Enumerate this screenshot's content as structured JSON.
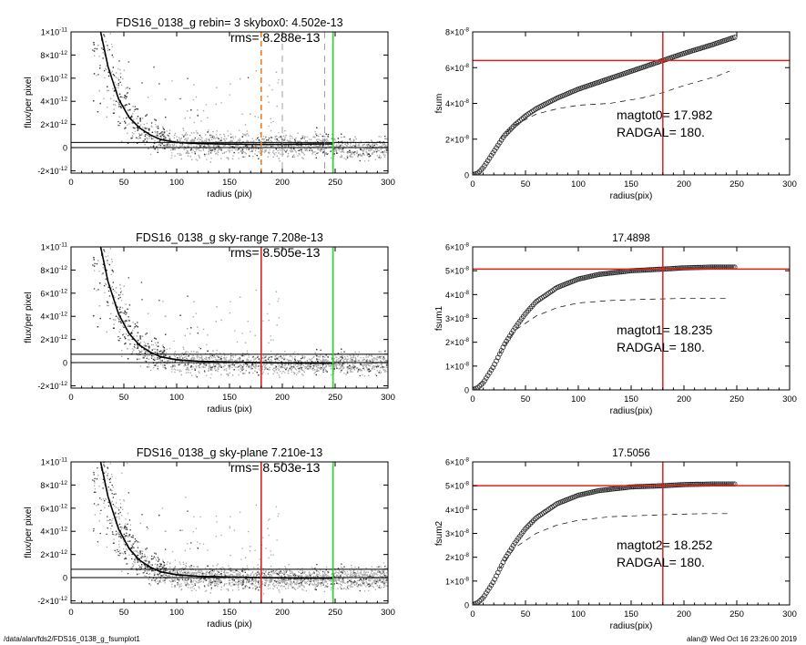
{
  "footer": {
    "left": "/data/alan/fds2/FDS16_0138_g_fsumplot1",
    "right": "alan@  Wed Oct 16 23:26:00 2019"
  },
  "colors": {
    "red": "#e0201f",
    "green": "#22dd22",
    "orange": "#ee8022",
    "scatter_dark": "#333333",
    "scatter_light": "#a8a8a8"
  },
  "chart_data": [
    {
      "id": "profile_rebin",
      "type": "scatter",
      "title": "FDS16_0138_g rebin= 3    skybox0:  4.502e-13",
      "annotation": "rms= 8.288e-13",
      "xlabel": "radius (pix)",
      "ylabel": "flux/per pixel",
      "xlim": [
        0,
        300
      ],
      "ylim": [
        -2.2e-12,
        1e-11
      ],
      "xticks": [
        "0",
        "50",
        "100",
        "150",
        "200",
        "250",
        "300"
      ],
      "yticks": [
        {
          "value": 1e-11,
          "mant": "1×10",
          "exp": "-11"
        },
        {
          "value": 8e-12,
          "mant": "8×10",
          "exp": "-12"
        },
        {
          "value": 6e-12,
          "mant": "6×10",
          "exp": "-12"
        },
        {
          "value": 4e-12,
          "mant": "4×10",
          "exp": "-12"
        },
        {
          "value": 2e-12,
          "mant": "2×10",
          "exp": "-12"
        },
        {
          "value": 0,
          "mant": "0",
          "exp": ""
        },
        {
          "value": -2e-12,
          "mant": "-2×10",
          "exp": "-12"
        }
      ],
      "sky_level": 4.502e-13,
      "profile": [
        [
          28,
          1e-11
        ],
        [
          35,
          7e-12
        ],
        [
          45,
          4.2e-12
        ],
        [
          55,
          2.6e-12
        ],
        [
          65,
          1.7e-12
        ],
        [
          75,
          1.1e-12
        ],
        [
          85,
          7e-13
        ],
        [
          100,
          4.5e-13
        ],
        [
          120,
          3.5e-13
        ],
        [
          150,
          3e-13
        ],
        [
          180,
          2.8e-13
        ],
        [
          210,
          2.9e-13
        ],
        [
          230,
          3.1e-13
        ],
        [
          248,
          3.2e-13
        ]
      ],
      "vlines": [
        {
          "x": 180,
          "color": "orange",
          "style": "dashed"
        },
        {
          "x": 200,
          "color": "gray",
          "style": "dashed"
        },
        {
          "x": 240,
          "color": "gray",
          "style": "dashed"
        },
        {
          "x": 248,
          "color": "green",
          "style": "solid"
        }
      ],
      "hlines": [
        {
          "y": 0,
          "color": "black"
        },
        {
          "y": 4.502e-13,
          "color": "black"
        }
      ]
    },
    {
      "id": "fsum",
      "type": "line",
      "title": "",
      "xlabel": "radius(pix)",
      "ylabel": "fsum",
      "xlim": [
        0,
        300
      ],
      "ylim": [
        0,
        8e-08
      ],
      "xticks": [
        "0",
        "50",
        "100",
        "150",
        "200",
        "250",
        "300"
      ],
      "yticks": [
        {
          "value": 8e-08,
          "mant": "8×10",
          "exp": "-8"
        },
        {
          "value": 6e-08,
          "mant": "6×10",
          "exp": "-8"
        },
        {
          "value": 4e-08,
          "mant": "4×10",
          "exp": "-8"
        },
        {
          "value": 2e-08,
          "mant": "2×10",
          "exp": "-8"
        },
        {
          "value": 0,
          "mant": "0",
          "exp": ""
        }
      ],
      "annotations": [
        "magtot0=  17.982",
        "RADGAL=    180."
      ],
      "curve": [
        [
          0,
          0
        ],
        [
          5,
          1e-09
        ],
        [
          10,
          4e-09
        ],
        [
          20,
          1.3e-08
        ],
        [
          30,
          2.2e-08
        ],
        [
          40,
          2.8e-08
        ],
        [
          50,
          3.3e-08
        ],
        [
          60,
          3.7e-08
        ],
        [
          80,
          4.3e-08
        ],
        [
          100,
          4.8e-08
        ],
        [
          120,
          5.2e-08
        ],
        [
          150,
          5.8e-08
        ],
        [
          180,
          6.4e-08
        ],
        [
          200,
          6.8e-08
        ],
        [
          225,
          7.25e-08
        ],
        [
          248,
          7.7e-08
        ]
      ],
      "dashed": [
        [
          25,
          2e-08
        ],
        [
          40,
          2.8e-08
        ],
        [
          60,
          3.4e-08
        ],
        [
          80,
          3.7e-08
        ],
        [
          100,
          3.9e-08
        ],
        [
          130,
          4e-08
        ],
        [
          160,
          4.3e-08
        ],
        [
          180,
          4.6e-08
        ],
        [
          200,
          5e-08
        ],
        [
          230,
          5.5e-08
        ],
        [
          243,
          5.8e-08
        ]
      ],
      "vline": 180,
      "hline": 6.4e-08
    },
    {
      "id": "profile_skyrange",
      "type": "scatter",
      "title": "FDS16_0138_g sky-range  7.208e-13",
      "annotation": "rms= 8.505e-13",
      "xlabel": "radius (pix)",
      "ylabel": "flux/per pixel",
      "xlim": [
        0,
        300
      ],
      "ylim": [
        -2.2e-12,
        1e-11
      ],
      "xticks": [
        "0",
        "50",
        "100",
        "150",
        "200",
        "250",
        "300"
      ],
      "yticks": [
        {
          "value": 1e-11,
          "mant": "1×10",
          "exp": "-11"
        },
        {
          "value": 8e-12,
          "mant": "8×10",
          "exp": "-12"
        },
        {
          "value": 6e-12,
          "mant": "6×10",
          "exp": "-12"
        },
        {
          "value": 4e-12,
          "mant": "4×10",
          "exp": "-12"
        },
        {
          "value": 2e-12,
          "mant": "2×10",
          "exp": "-12"
        },
        {
          "value": 0,
          "mant": "0",
          "exp": ""
        },
        {
          "value": -2e-12,
          "mant": "-2×10",
          "exp": "-12"
        }
      ],
      "sky_level": 7.208e-13,
      "profile": [
        [
          28,
          1e-11
        ],
        [
          35,
          7e-12
        ],
        [
          45,
          4.2e-12
        ],
        [
          55,
          2.5e-12
        ],
        [
          65,
          1.5e-12
        ],
        [
          75,
          9e-13
        ],
        [
          85,
          5e-13
        ],
        [
          100,
          2.5e-13
        ],
        [
          120,
          1.2e-13
        ],
        [
          150,
          5e-14
        ],
        [
          180,
          0
        ],
        [
          210,
          -3e-14
        ],
        [
          230,
          -4e-14
        ],
        [
          248,
          -5e-14
        ]
      ],
      "vlines": [
        {
          "x": 180,
          "color": "red",
          "style": "solid"
        },
        {
          "x": 248,
          "color": "green",
          "style": "solid"
        }
      ],
      "hlines": [
        {
          "y": 0,
          "color": "black"
        },
        {
          "y": 7.208e-13,
          "color": "black"
        }
      ]
    },
    {
      "id": "fsum1",
      "type": "line",
      "title": "17.4898",
      "xlabel": "radius(pix)",
      "ylabel": "fsum1",
      "xlim": [
        0,
        300
      ],
      "ylim": [
        0,
        6e-08
      ],
      "xticks": [
        "0",
        "50",
        "100",
        "150",
        "200",
        "250",
        "300"
      ],
      "yticks": [
        {
          "value": 6e-08,
          "mant": "6×10",
          "exp": "-8"
        },
        {
          "value": 5e-08,
          "mant": "5×10",
          "exp": "-8"
        },
        {
          "value": 4e-08,
          "mant": "4×10",
          "exp": "-8"
        },
        {
          "value": 3e-08,
          "mant": "3×10",
          "exp": "-8"
        },
        {
          "value": 2e-08,
          "mant": "2×10",
          "exp": "-8"
        },
        {
          "value": 1e-08,
          "mant": "1×10",
          "exp": "-8"
        },
        {
          "value": 0,
          "mant": "0",
          "exp": ""
        }
      ],
      "annotations": [
        "magtot1=  18.235",
        "RADGAL=    180."
      ],
      "curve": [
        [
          0,
          0
        ],
        [
          5,
          1e-09
        ],
        [
          10,
          3e-09
        ],
        [
          20,
          1e-08
        ],
        [
          30,
          1.9e-08
        ],
        [
          40,
          2.6e-08
        ],
        [
          50,
          3.2e-08
        ],
        [
          60,
          3.7e-08
        ],
        [
          80,
          4.3e-08
        ],
        [
          100,
          4.65e-08
        ],
        [
          120,
          4.85e-08
        ],
        [
          150,
          5e-08
        ],
        [
          180,
          5.07e-08
        ],
        [
          200,
          5.12e-08
        ],
        [
          225,
          5.15e-08
        ],
        [
          248,
          5.15e-08
        ]
      ],
      "dashed": [
        [
          25,
          1.5e-08
        ],
        [
          40,
          2.5e-08
        ],
        [
          60,
          3.1e-08
        ],
        [
          80,
          3.45e-08
        ],
        [
          100,
          3.65e-08
        ],
        [
          130,
          3.75e-08
        ],
        [
          160,
          3.8e-08
        ],
        [
          190,
          3.83e-08
        ],
        [
          220,
          3.85e-08
        ],
        [
          243,
          3.85e-08
        ]
      ],
      "vline": 180,
      "hline": 5.07e-08
    },
    {
      "id": "profile_skyplane",
      "type": "scatter",
      "title": "FDS16_0138_g sky-plane  7.210e-13",
      "annotation": "rms= 8.503e-13",
      "xlabel": "radius (pix)",
      "ylabel": "flux/per pixel",
      "xlim": [
        0,
        300
      ],
      "ylim": [
        -2.2e-12,
        1e-11
      ],
      "xticks": [
        "0",
        "50",
        "100",
        "150",
        "200",
        "250",
        "300"
      ],
      "yticks": [
        {
          "value": 1e-11,
          "mant": "1×10",
          "exp": "-11"
        },
        {
          "value": 8e-12,
          "mant": "8×10",
          "exp": "-12"
        },
        {
          "value": 6e-12,
          "mant": "6×10",
          "exp": "-12"
        },
        {
          "value": 4e-12,
          "mant": "4×10",
          "exp": "-12"
        },
        {
          "value": 2e-12,
          "mant": "2×10",
          "exp": "-12"
        },
        {
          "value": 0,
          "mant": "0",
          "exp": ""
        },
        {
          "value": -2e-12,
          "mant": "-2×10",
          "exp": "-12"
        }
      ],
      "sky_level": 7.21e-13,
      "profile": [
        [
          28,
          1e-11
        ],
        [
          35,
          7e-12
        ],
        [
          45,
          4.2e-12
        ],
        [
          55,
          2.5e-12
        ],
        [
          65,
          1.5e-12
        ],
        [
          75,
          9e-13
        ],
        [
          85,
          5e-13
        ],
        [
          100,
          2.5e-13
        ],
        [
          120,
          1.2e-13
        ],
        [
          150,
          5e-14
        ],
        [
          180,
          0
        ],
        [
          210,
          -3e-14
        ],
        [
          230,
          -4e-14
        ],
        [
          248,
          -5e-14
        ]
      ],
      "vlines": [
        {
          "x": 180,
          "color": "red",
          "style": "solid"
        },
        {
          "x": 248,
          "color": "green",
          "style": "solid"
        }
      ],
      "hlines": [
        {
          "y": 0,
          "color": "black"
        },
        {
          "y": 7.21e-13,
          "color": "black"
        }
      ]
    },
    {
      "id": "fsum2",
      "type": "line",
      "title": "17.5056",
      "xlabel": "radius(pix)",
      "ylabel": "fsum2",
      "xlim": [
        0,
        300
      ],
      "ylim": [
        0,
        6e-08
      ],
      "xticks": [
        "0",
        "50",
        "100",
        "150",
        "200",
        "250",
        "300"
      ],
      "yticks": [
        {
          "value": 6e-08,
          "mant": "6×10",
          "exp": "-8"
        },
        {
          "value": 5e-08,
          "mant": "5×10",
          "exp": "-8"
        },
        {
          "value": 4e-08,
          "mant": "4×10",
          "exp": "-8"
        },
        {
          "value": 3e-08,
          "mant": "3×10",
          "exp": "-8"
        },
        {
          "value": 2e-08,
          "mant": "2×10",
          "exp": "-8"
        },
        {
          "value": 1e-08,
          "mant": "1×10",
          "exp": "-8"
        },
        {
          "value": 0,
          "mant": "0",
          "exp": ""
        }
      ],
      "annotations": [
        "magtot2=  18.252",
        "RADGAL=    180."
      ],
      "curve": [
        [
          0,
          0
        ],
        [
          5,
          1e-09
        ],
        [
          10,
          3e-09
        ],
        [
          20,
          1e-08
        ],
        [
          30,
          1.9e-08
        ],
        [
          40,
          2.6e-08
        ],
        [
          50,
          3.2e-08
        ],
        [
          60,
          3.65e-08
        ],
        [
          80,
          4.25e-08
        ],
        [
          100,
          4.6e-08
        ],
        [
          120,
          4.8e-08
        ],
        [
          150,
          4.95e-08
        ],
        [
          180,
          5e-08
        ],
        [
          200,
          5.05e-08
        ],
        [
          225,
          5.07e-08
        ],
        [
          248,
          5.07e-08
        ]
      ],
      "dashed": [
        [
          25,
          1.5e-08
        ],
        [
          40,
          2.4e-08
        ],
        [
          60,
          3e-08
        ],
        [
          80,
          3.35e-08
        ],
        [
          100,
          3.55e-08
        ],
        [
          130,
          3.7e-08
        ],
        [
          160,
          3.75e-08
        ],
        [
          190,
          3.8e-08
        ],
        [
          220,
          3.83e-08
        ],
        [
          243,
          3.83e-08
        ]
      ],
      "vline": 180,
      "hline": 5e-08
    }
  ]
}
